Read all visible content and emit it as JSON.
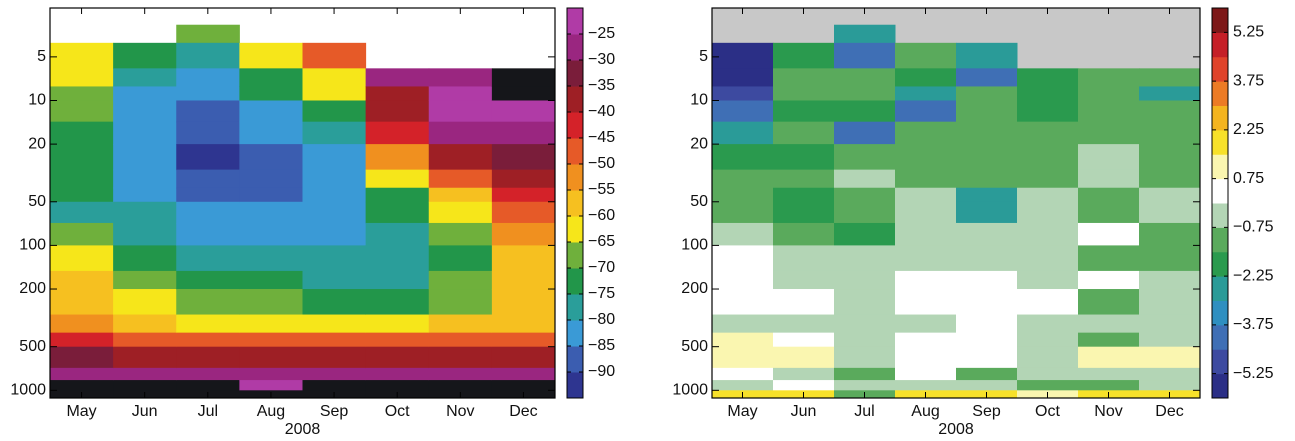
{
  "chart_data": [
    {
      "type": "heatmap",
      "categories": [
        "May",
        "Jun",
        "Jul",
        "Aug",
        "Sep",
        "Oct",
        "Nov",
        "Dec"
      ],
      "xlabel": "2008",
      "log_y": true,
      "ylim": [
        2.3,
        1130
      ],
      "yticks": [
        5,
        10,
        20,
        50,
        100,
        200,
        500,
        1000
      ],
      "y_edges": [
        2.3,
        3,
        4,
        6,
        8,
        10,
        14,
        20,
        30,
        40,
        50,
        70,
        100,
        150,
        200,
        300,
        400,
        500,
        700,
        850,
        1000,
        1130
      ],
      "z": [
        [
          null,
          null,
          -62,
          -65,
          -66,
          -70,
          -75,
          -75,
          -75,
          -75,
          -77,
          -70,
          -65,
          -60,
          -57,
          -52,
          -45,
          -35,
          -28,
          -15,
          -15
        ],
        [
          null,
          null,
          -75,
          -80,
          -82,
          -85,
          -85,
          -85,
          -85,
          -83,
          -80,
          -77,
          -72,
          -68,
          -64,
          -60,
          -50,
          -38,
          -28,
          -15,
          -15
        ],
        [
          null,
          -70,
          -78,
          -85,
          -85,
          -88,
          -90,
          -92,
          -88,
          -87,
          -85,
          -82,
          -78,
          -75,
          -68,
          -62,
          -50,
          -38,
          -28,
          -15,
          -15
        ],
        [
          null,
          null,
          -62,
          -72,
          -75,
          -85,
          -85,
          -90,
          -90,
          -88,
          -85,
          -82,
          -78,
          -75,
          -70,
          -62,
          -50,
          -38,
          -28,
          -25,
          -15
        ],
        [
          null,
          null,
          -47,
          -62,
          -65,
          -72,
          -78,
          -82,
          -85,
          -85,
          -85,
          -83,
          -80,
          -76,
          -72,
          -62,
          -50,
          -38,
          -28,
          -15,
          -15
        ],
        [
          null,
          null,
          null,
          -30,
          -38,
          -40,
          -45,
          -52,
          -62,
          -72,
          -75,
          -78,
          -80,
          -76,
          -72,
          -62,
          -48,
          -38,
          -28,
          -15,
          -15
        ],
        [
          null,
          null,
          null,
          -27,
          -25,
          -25,
          -30,
          -38,
          -48,
          -58,
          -62,
          -66,
          -72,
          -70,
          -67,
          -60,
          -48,
          -38,
          -28,
          -15,
          -15
        ],
        [
          null,
          null,
          null,
          -15,
          -15,
          -25,
          -30,
          -35,
          -40,
          -45,
          -48,
          -52,
          -57,
          -58,
          -60,
          -57,
          -48,
          -38,
          -28,
          -15,
          -15
        ]
      ],
      "missing_color": "#ffffff",
      "colorbar": {
        "clim": [
          -95,
          -20
        ],
        "colors": [
          "#2e3590",
          "#3b5db0",
          "#3a9ad6",
          "#2a9e9a",
          "#22964a",
          "#6fb03c",
          "#f6e61a",
          "#f6c020",
          "#f0901f",
          "#e65a28",
          "#d42229",
          "#9e1f25",
          "#7a1d3a",
          "#9a2680",
          "#b03ba6"
        ],
        "over_color": "#15161a",
        "ticks": [
          {
            "value": -25,
            "label": "−25"
          },
          {
            "value": -30,
            "label": "−30"
          },
          {
            "value": -35,
            "label": "−35"
          },
          {
            "value": -40,
            "label": "−40"
          },
          {
            "value": -45,
            "label": "−45"
          },
          {
            "value": -50,
            "label": "−50"
          },
          {
            "value": -55,
            "label": "−55"
          },
          {
            "value": -60,
            "label": "−60"
          },
          {
            "value": -65,
            "label": "−65"
          },
          {
            "value": -70,
            "label": "−70"
          },
          {
            "value": -75,
            "label": "−75"
          },
          {
            "value": -80,
            "label": "−80"
          },
          {
            "value": -85,
            "label": "−85"
          },
          {
            "value": -90,
            "label": "−90"
          }
        ]
      }
    },
    {
      "type": "heatmap",
      "categories": [
        "May",
        "Jun",
        "Jul",
        "Aug",
        "Sep",
        "Oct",
        "Nov",
        "Dec"
      ],
      "xlabel": "2008",
      "log_y": true,
      "ylim": [
        2.3,
        1130
      ],
      "yticks": [
        5,
        10,
        20,
        50,
        100,
        200,
        500,
        1000
      ],
      "y_edges": [
        2.3,
        3,
        4,
        6,
        8,
        10,
        14,
        20,
        30,
        40,
        50,
        70,
        100,
        150,
        200,
        300,
        400,
        500,
        700,
        850,
        1000,
        1130
      ],
      "z": [
        [
          null,
          null,
          -5.5,
          -5.5,
          -5,
          -4.5,
          -3,
          -1.8,
          -1.5,
          -1.5,
          -1.5,
          -0.4,
          0.3,
          0.3,
          0.3,
          -0.4,
          1,
          1,
          0.3,
          -0.4,
          1.5
        ],
        [
          null,
          null,
          -2,
          -1.5,
          -1.5,
          -1.8,
          -1.5,
          -1.8,
          -1.5,
          -1.8,
          -1.8,
          -1.2,
          -0.4,
          -0.4,
          0.3,
          -0.4,
          0.3,
          1,
          -0.4,
          0.3,
          1.5
        ],
        [
          null,
          -3,
          -4.5,
          -1.5,
          -1.5,
          -1.8,
          -4,
          -1.5,
          -0.4,
          -1,
          -1,
          -1.8,
          -0.4,
          -0.4,
          -0.4,
          -0.4,
          -0.4,
          -0.4,
          -1,
          -0.4,
          -1.5
        ],
        [
          null,
          null,
          -1.5,
          -2,
          -2.5,
          -4,
          -1.5,
          -1,
          -1,
          -0.4,
          -0.4,
          -0.4,
          -0.4,
          0.3,
          0.3,
          -0.4,
          0.3,
          0.3,
          0.3,
          -0.4,
          1.5
        ],
        [
          null,
          null,
          -3,
          -4,
          -1.5,
          -1.5,
          -1.5,
          -1.5,
          -1.5,
          -2.5,
          -2.5,
          -0.4,
          -0.4,
          0.3,
          0.3,
          0.3,
          0.3,
          0.3,
          -1.5,
          -0.4,
          1.5
        ],
        [
          null,
          null,
          null,
          -2,
          -2,
          -2,
          -1.5,
          -1.5,
          -1.5,
          -0.4,
          -0.4,
          -0.4,
          -0.4,
          -0.4,
          0.3,
          -0.4,
          -0.4,
          -0.4,
          -0.4,
          -1.5,
          1
        ],
        [
          null,
          null,
          null,
          -1.5,
          -1.5,
          -1.5,
          -1.5,
          -0.4,
          -0.4,
          -1,
          -1,
          0.3,
          -1.5,
          0.3,
          -1,
          -0.4,
          -1.5,
          1,
          -0.4,
          -1.5,
          1.5
        ],
        [
          null,
          null,
          null,
          -1.5,
          -3,
          -1.5,
          -1.5,
          -1,
          -1,
          -0.4,
          -0.4,
          -1,
          -1,
          -0.4,
          -0.4,
          -0.4,
          -0.4,
          1,
          -0.4,
          -0.4,
          1.5
        ]
      ],
      "missing_color": "#c8c8c8",
      "colorbar": {
        "clim": [
          -6,
          6
        ],
        "colors": [
          "#2b2f86",
          "#3d4aa0",
          "#3f6fb5",
          "#2f8fc0",
          "#2a9b98",
          "#2a9a4e",
          "#5aaa5c",
          "#b3d5b5",
          "#ffffff",
          "#faf6b0",
          "#f7e12a",
          "#f4b41f",
          "#ec7b25",
          "#e0432a",
          "#c51f27",
          "#7d1818"
        ],
        "ticks": [
          5.25,
          3.75,
          2.25,
          0.75,
          {
            "value": -0.75,
            "label": "−0.75"
          },
          {
            "value": -2.25,
            "label": "−2.25"
          },
          {
            "value": -3.75,
            "label": "−3.75"
          },
          {
            "value": -5.25,
            "label": "−5.25"
          }
        ]
      }
    }
  ]
}
